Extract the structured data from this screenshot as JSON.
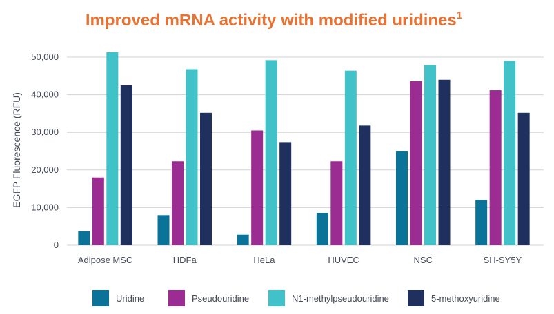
{
  "colors": {
    "title": "#e87231",
    "gridline": "#d3d3d3",
    "axis_text": "#444a57"
  },
  "chart_data": {
    "type": "bar",
    "title": "Improved mRNA activity with modified uridines",
    "title_superscript": "1",
    "xlabel": "",
    "ylabel": "EGFP Fluorescence (RFU)",
    "ylim": [
      0,
      52000
    ],
    "yticks": [
      0,
      10000,
      20000,
      30000,
      40000,
      50000
    ],
    "ytick_labels": [
      "0",
      "10,000",
      "20,000",
      "30,000",
      "40,000",
      "50,000"
    ],
    "grid": true,
    "legend_position": "bottom",
    "categories": [
      "Adipose MSC",
      "HDFa",
      "HeLa",
      "HUVEC",
      "NSC",
      "SH-SY5Y"
    ],
    "series": [
      {
        "name": "Uridine",
        "color": "#0b7397",
        "values": [
          3700,
          8000,
          2800,
          8600,
          25000,
          12000
        ]
      },
      {
        "name": "Pseudouridine",
        "color": "#9b2c91",
        "values": [
          18000,
          22300,
          30500,
          22300,
          43600,
          41200
        ]
      },
      {
        "name": "N1-methylpseudouridine",
        "color": "#41c2c8",
        "values": [
          51300,
          46800,
          49200,
          46400,
          47900,
          49000
        ]
      },
      {
        "name": "5-methoxyuridine",
        "color": "#20305e",
        "values": [
          42500,
          35200,
          27400,
          31800,
          44000,
          35200
        ]
      }
    ]
  }
}
